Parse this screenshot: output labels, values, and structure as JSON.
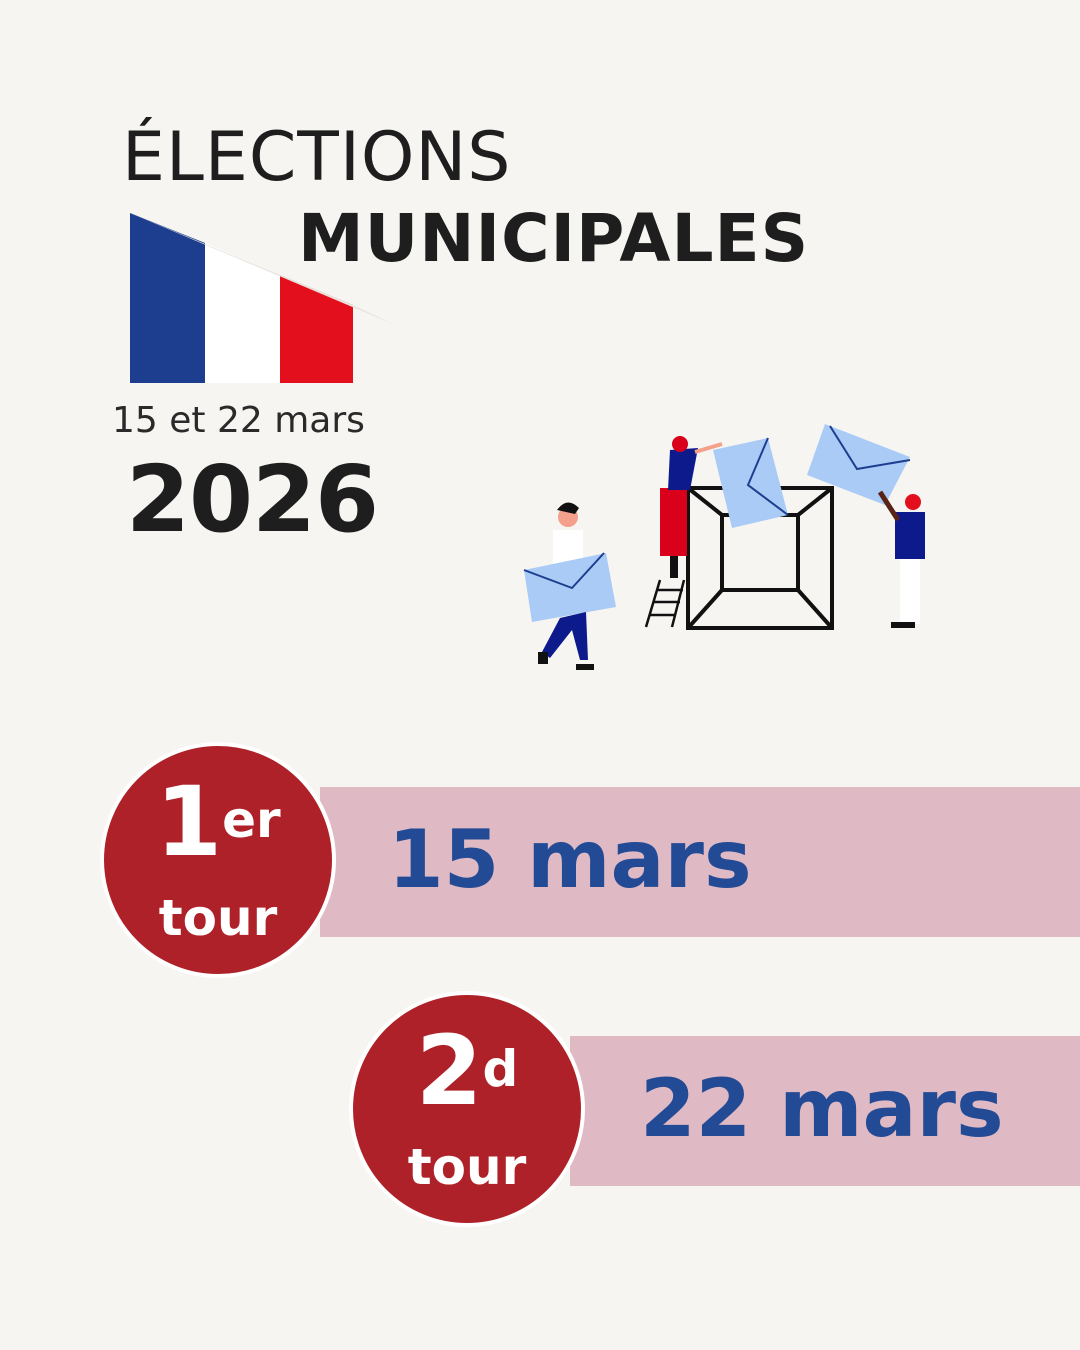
{
  "header": {
    "title_line1": "ÉLECTIONS",
    "title_line2": "MUNICIPALES",
    "dates": "15 et 22 mars",
    "year": "2026"
  },
  "flag_colors": [
    "#1d3e8f",
    "#ffffff",
    "#e30f1c"
  ],
  "rounds": [
    {
      "number": "1",
      "suffix": "er",
      "label": "tour",
      "date": "15 mars"
    },
    {
      "number": "2",
      "suffix": "d",
      "label": "tour",
      "date": "22 mars"
    }
  ],
  "colors": {
    "circle": "#ae2128",
    "band": "#dfbac4",
    "date_text": "#234a95",
    "background": "#f7f5f2"
  },
  "illustration": "people-putting-envelopes-in-ballot-box"
}
